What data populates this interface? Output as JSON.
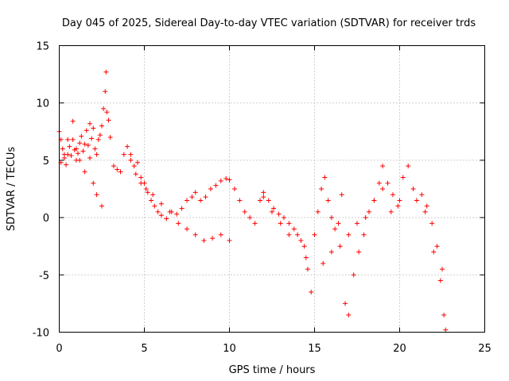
{
  "chart_data": {
    "type": "scatter",
    "title": "Day 045 of 2025, Sidereal Day-to-day VTEC variation (SDTVAR) for receiver trds",
    "xlabel": "GPS time / hours",
    "ylabel": "SDTVAR / TECUs",
    "xlim": [
      0,
      25
    ],
    "ylim": [
      -10,
      15
    ],
    "xticks": [
      0,
      5,
      10,
      15,
      20,
      25
    ],
    "xtick_labels": [
      "0",
      "5",
      "10",
      "15",
      "20",
      "25"
    ],
    "yticks": [
      -10,
      -5,
      0,
      5,
      10,
      15
    ],
    "ytick_labels": [
      "-10",
      "-5",
      "0",
      "5",
      "10",
      "15"
    ],
    "grid": true,
    "marker": "+",
    "color": "#ff0000",
    "series": [
      {
        "name": "SDTVAR",
        "x": [
          0.0,
          0.1,
          0.2,
          0.3,
          0.4,
          0.5,
          0.6,
          0.7,
          0.8,
          0.9,
          1.0,
          1.1,
          1.2,
          1.3,
          1.4,
          1.5,
          1.6,
          1.7,
          1.8,
          1.9,
          2.0,
          2.1,
          2.2,
          2.3,
          2.4,
          2.5,
          2.6,
          2.7,
          2.75,
          2.8,
          2.9,
          3.0,
          3.2,
          3.4,
          3.6,
          3.8,
          4.0,
          4.2,
          4.4,
          4.6,
          4.8,
          5.0,
          5.2,
          5.4,
          5.6,
          5.8,
          6.0,
          6.3,
          6.6,
          6.9,
          7.2,
          7.5,
          7.8,
          8.0,
          8.3,
          8.6,
          8.9,
          9.2,
          9.5,
          9.8,
          10.0,
          10.3,
          10.6,
          10.9,
          11.2,
          11.5,
          11.8,
          12.0,
          12.3,
          12.6,
          12.9,
          13.2,
          13.5,
          13.8,
          14.0,
          14.2,
          14.4,
          14.6,
          14.8,
          15.0,
          15.2,
          15.4,
          15.6,
          15.8,
          16.0,
          16.2,
          16.4,
          16.6,
          16.8,
          17.0,
          17.3,
          17.6,
          17.9,
          18.2,
          18.5,
          18.8,
          19.0,
          19.3,
          19.6,
          19.9,
          20.2,
          20.5,
          20.8,
          21.0,
          21.3,
          21.6,
          21.9,
          22.2,
          22.4,
          22.6,
          22.7,
          0.1,
          0.3,
          0.5,
          0.8,
          1.0,
          1.2,
          1.5,
          1.8,
          2.0,
          2.2,
          2.5,
          4.2,
          4.5,
          4.8,
          5.1,
          5.5,
          6.0,
          6.5,
          7.0,
          7.5,
          8.0,
          8.5,
          9.0,
          9.5,
          10.0,
          12.0,
          12.5,
          13.0,
          13.5,
          14.5,
          15.5,
          16.0,
          16.5,
          17.0,
          17.5,
          18.0,
          18.5,
          19.0,
          19.5,
          20.0,
          21.5,
          22.0,
          22.5
        ],
        "y": [
          7.5,
          6.8,
          6.0,
          5.2,
          4.6,
          5.5,
          6.2,
          5.4,
          6.8,
          5.9,
          5.0,
          5.6,
          6.5,
          7.1,
          5.8,
          6.4,
          7.6,
          6.3,
          5.2,
          6.9,
          7.8,
          6.0,
          5.5,
          6.8,
          7.2,
          8.0,
          9.5,
          11.0,
          12.7,
          9.2,
          8.5,
          7.0,
          4.5,
          4.2,
          4.0,
          5.5,
          6.2,
          5.0,
          4.5,
          4.8,
          3.5,
          3.0,
          2.2,
          1.5,
          1.0,
          0.5,
          0.2,
          -0.1,
          0.5,
          0.3,
          0.8,
          1.5,
          1.8,
          2.2,
          1.5,
          1.8,
          2.5,
          2.8,
          3.2,
          3.4,
          3.3,
          2.5,
          1.5,
          0.5,
          0.0,
          -0.5,
          1.5,
          2.2,
          1.5,
          0.8,
          0.3,
          0.0,
          -0.5,
          -1.0,
          -1.5,
          -2.0,
          -2.5,
          -4.5,
          -6.5,
          -1.5,
          0.5,
          2.5,
          3.5,
          1.5,
          0.0,
          -1.0,
          -0.5,
          2.0,
          -7.5,
          -8.5,
          -5.0,
          -3.0,
          -1.5,
          0.5,
          1.5,
          3.0,
          4.5,
          3.0,
          2.0,
          1.0,
          3.5,
          4.5,
          2.5,
          1.5,
          2.0,
          1.0,
          -0.5,
          -2.5,
          -5.5,
          -8.5,
          -9.8,
          4.8,
          5.5,
          6.8,
          8.4,
          6.0,
          5.0,
          4.0,
          8.2,
          3.0,
          2.0,
          1.0,
          5.5,
          3.8,
          3.0,
          2.5,
          2.0,
          1.2,
          0.5,
          -0.5,
          -1.0,
          -1.5,
          -2.0,
          -1.8,
          -1.5,
          -2.0,
          1.8,
          0.5,
          -0.5,
          -1.5,
          -3.5,
          -4.0,
          -3.0,
          -2.5,
          -1.5,
          -0.5,
          0.0,
          1.5,
          2.5,
          0.5,
          1.5,
          0.5,
          -3.0,
          -4.5
        ]
      }
    ]
  }
}
